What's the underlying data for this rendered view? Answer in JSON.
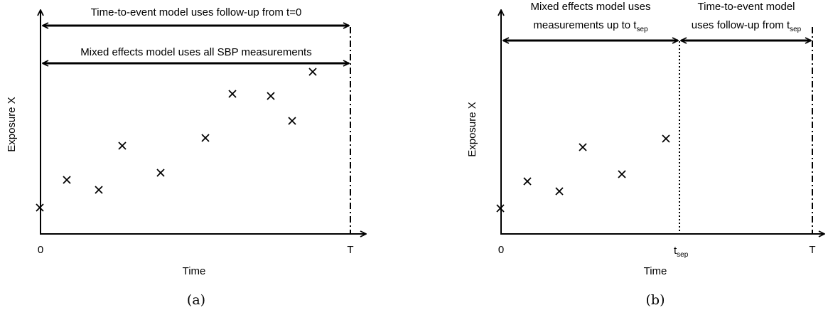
{
  "panel_a": {
    "caption": "(a)",
    "y_label": "Exposure X",
    "x_label": "Time",
    "origin_label": "0",
    "end_label": "T",
    "arrow_top_text": "Time-to-event model uses follow-up from t=0",
    "arrow_bottom_text": "Mixed effects model uses all SBP measurements",
    "measurements": [
      "×",
      "×",
      "×",
      "×",
      "×",
      "×",
      "×",
      "×",
      "×",
      "×",
      "×"
    ]
  },
  "panel_b": {
    "caption": "(b)",
    "y_label": "Exposure X",
    "x_label": "Time",
    "origin_label": "0",
    "end_label": "T",
    "sep_label_main": "t",
    "sep_label_sub": "sep",
    "left_text_line1": "Mixed effects model uses",
    "left_text_line2_main": "measurements up to t",
    "left_text_line2_sub": "sep",
    "right_text_line1": "Time-to-event model",
    "right_text_line2_main": "uses follow-up from t",
    "right_text_line2_sub": "sep",
    "measurements": [
      "×",
      "×",
      "×",
      "×",
      "×",
      "×"
    ]
  }
}
